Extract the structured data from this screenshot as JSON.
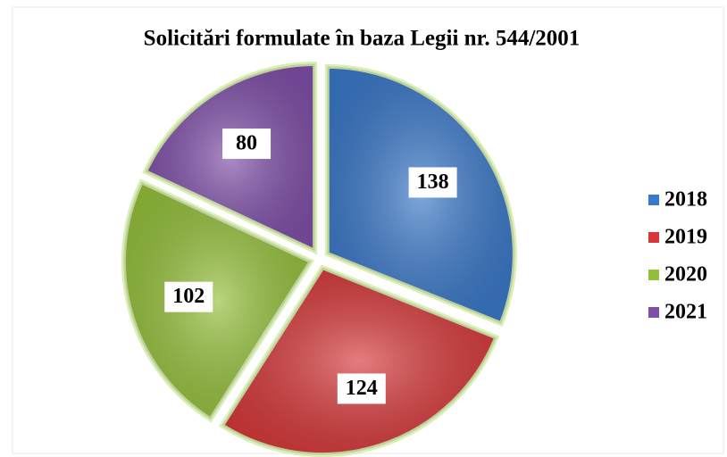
{
  "chart_data": {
    "type": "pie",
    "title": "Solicitări formulate în baza  Legii nr. 544/2001",
    "categories": [
      "2018",
      "2019",
      "2020",
      "2021"
    ],
    "values": [
      138,
      124,
      102,
      80
    ],
    "colors": [
      "#3a78c8",
      "#d6383a",
      "#94bf3a",
      "#7f4fa8"
    ],
    "legend": "right"
  }
}
